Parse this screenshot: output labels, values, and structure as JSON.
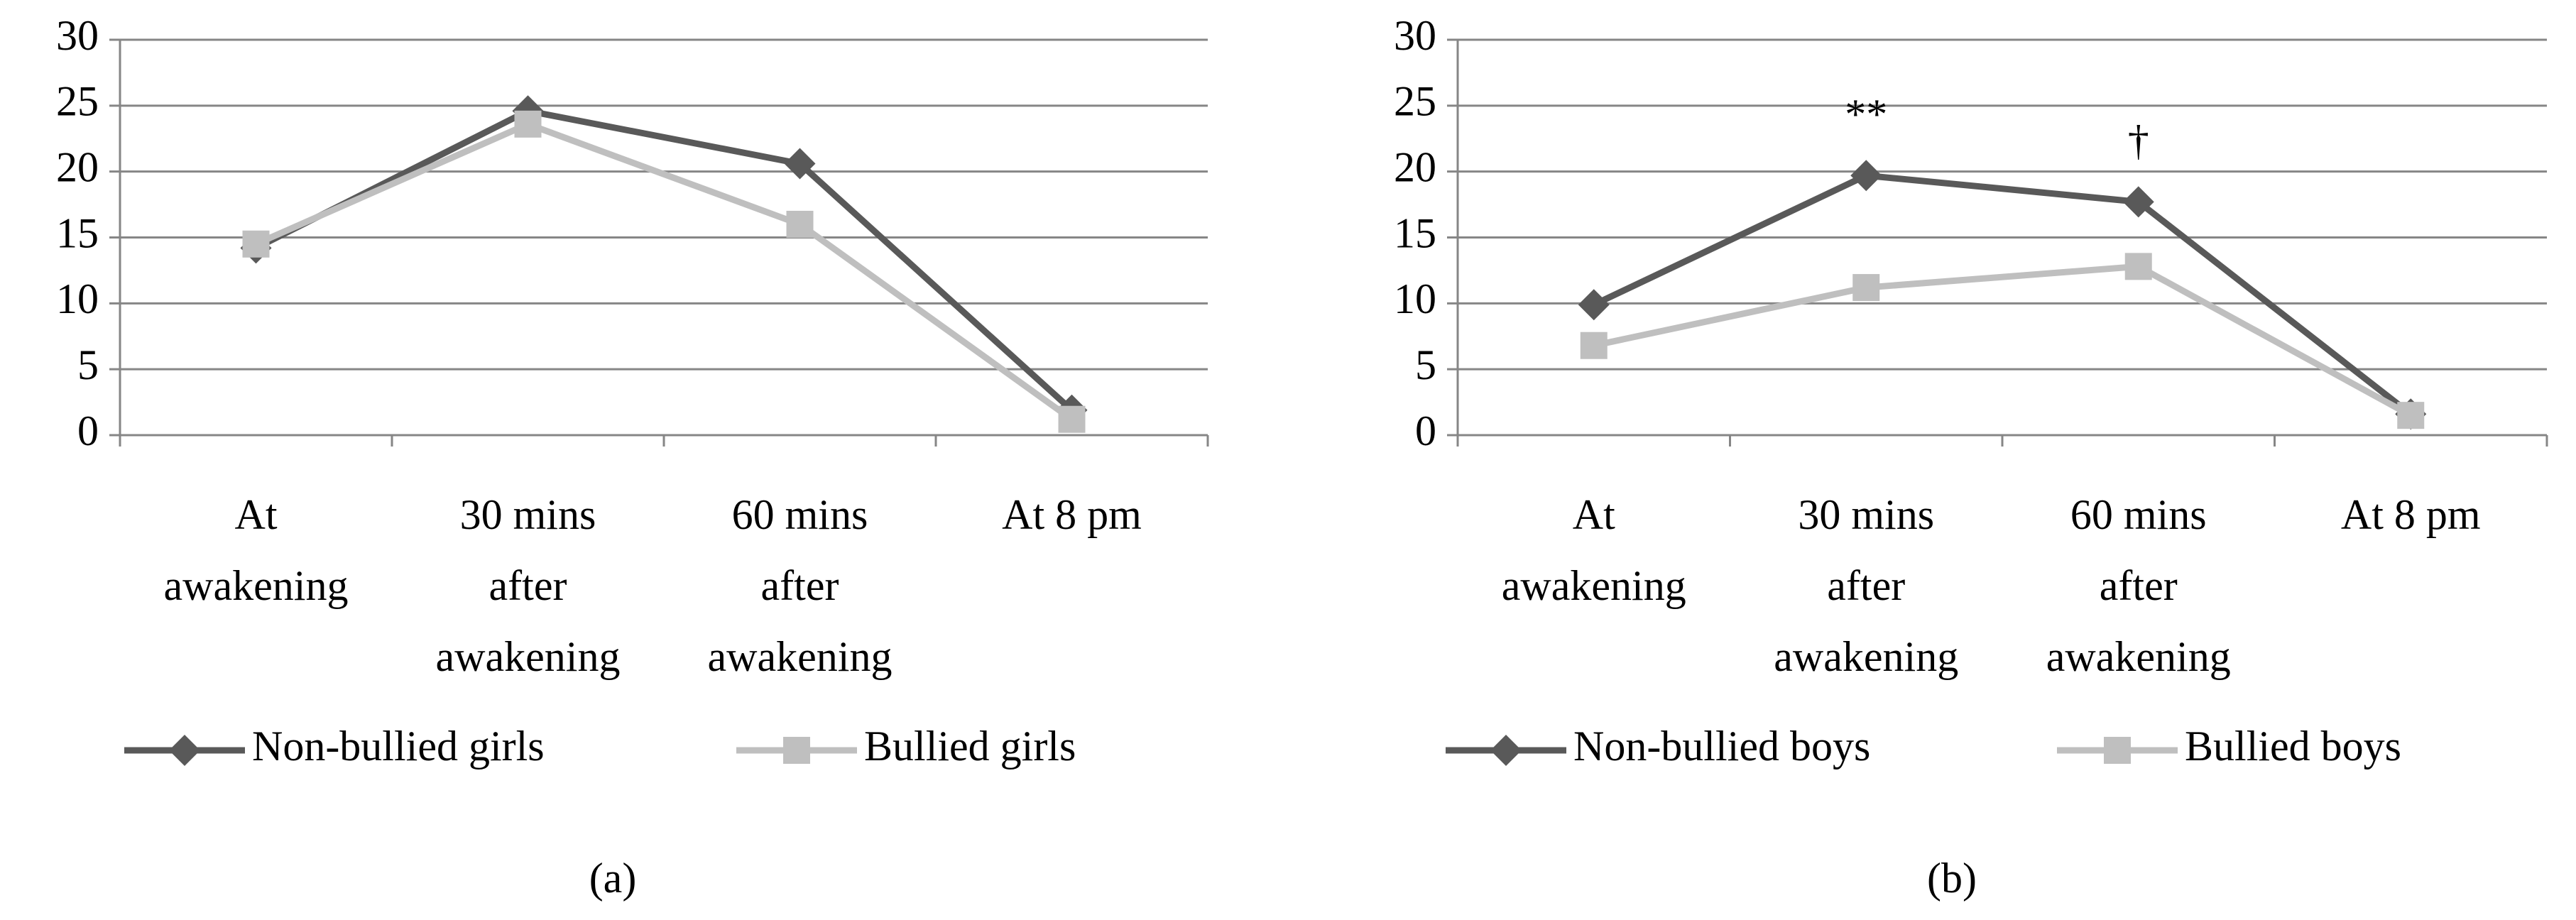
{
  "chart_data": [
    {
      "type": "line",
      "panel_label": "(a)",
      "categories": [
        "At awakening",
        "30 mins after awakening",
        "60 mins after awakening",
        "At 8 pm"
      ],
      "series": [
        {
          "name": "Non-bullied girls",
          "color": "#595959",
          "marker": "diamond",
          "values": [
            14.2,
            24.6,
            20.6,
            1.9
          ]
        },
        {
          "name": "Bullied girls",
          "color": "#bfbfbf",
          "marker": "square",
          "values": [
            14.5,
            23.6,
            16.0,
            1.2
          ]
        }
      ],
      "ylim": [
        0,
        30
      ],
      "yticks": [
        0,
        5,
        10,
        15,
        20,
        25,
        30
      ],
      "grid": true
    },
    {
      "type": "line",
      "panel_label": "(b)",
      "categories": [
        "At awakening",
        "30 mins after awakening",
        "60 mins after awakening",
        "At 8 pm"
      ],
      "series": [
        {
          "name": "Non-bullied boys",
          "color": "#595959",
          "marker": "diamond",
          "values": [
            9.9,
            19.7,
            17.7,
            1.6
          ],
          "annotations": [
            null,
            "**",
            "†",
            null
          ]
        },
        {
          "name": "Bullied boys",
          "color": "#bfbfbf",
          "marker": "square",
          "values": [
            6.8,
            11.2,
            12.8,
            1.5
          ]
        }
      ],
      "ylim": [
        0,
        30
      ],
      "yticks": [
        0,
        5,
        10,
        15,
        20,
        25,
        30
      ],
      "grid": true
    }
  ]
}
